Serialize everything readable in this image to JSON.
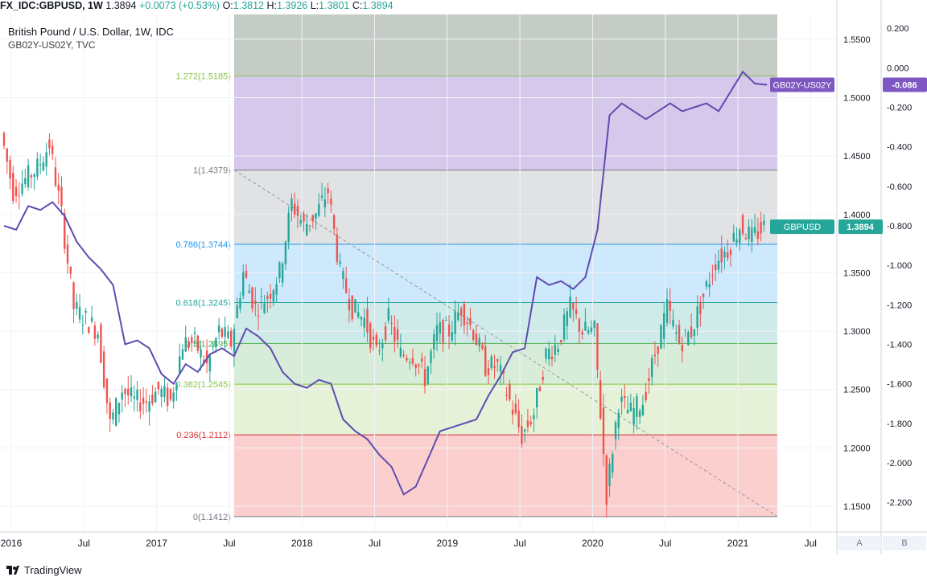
{
  "header": {
    "symbol": "FX_IDC:GBPUSD, 1W",
    "last": "1.3894",
    "change": "+0.0073 (+0.53%)",
    "o_label": "O:",
    "o": "1.3812",
    "h_label": "H:",
    "h": "1.3926",
    "l_label": "L:",
    "l": "1.3801",
    "c_label": "C:",
    "c": "1.3894"
  },
  "legend": {
    "main": "British Pound / U.S. Dollar, 1W, IDC",
    "secondary": "GB02Y-US02Y, TVC"
  },
  "footer": {
    "brand": "TradingView",
    "scale_a": "A",
    "scale_b": "B"
  },
  "colors": {
    "up": "#26a69a",
    "down": "#ef5350",
    "spread_line": "#5e4cb0",
    "badge_spread": "#7e57c2",
    "badge_price": "#26a69a"
  },
  "chart_data": {
    "type": "candlestick",
    "title": "British Pound / U.S. Dollar, 1W, IDC",
    "x_ticks": [
      "2016",
      "Jul",
      "2017",
      "Jul",
      "2018",
      "Jul",
      "2019",
      "Jul",
      "2020",
      "Jul",
      "2021",
      "Jul"
    ],
    "price_axis": {
      "ticks": [
        "1.5500",
        "1.5000",
        "1.4500",
        "1.4000",
        "1.3500",
        "1.3000",
        "1.2500",
        "1.2000",
        "1.1500"
      ],
      "range": [
        1.128,
        1.5712
      ]
    },
    "spread_axis": {
      "ticks": [
        "0.200",
        "0.000",
        "-0.200",
        "-0.400",
        "-0.600",
        "-0.800",
        "-1.000",
        "-1.200",
        "-1.400",
        "-1.600",
        "-1.800",
        "-2.000",
        "-2.200"
      ],
      "range": [
        -2.35,
        0.27
      ]
    },
    "fibonacci": {
      "start": {
        "date": "2017-08",
        "price": 1.4379
      },
      "end": {
        "date": "2021-05",
        "price": 1.1412
      },
      "levels": [
        {
          "label": "1.272(1.5185)",
          "ratio": 1.272,
          "price": 1.5185,
          "color": "#8bc34a"
        },
        {
          "label": "1(1.4379)",
          "ratio": 1,
          "price": 1.4379,
          "color": "#787b86"
        },
        {
          "label": "0.786(1.3744)",
          "ratio": 0.786,
          "price": 1.3744,
          "color": "#2196f3"
        },
        {
          "label": "0.618(1.3245)",
          "ratio": 0.618,
          "price": 1.3245,
          "color": "#26a69a"
        },
        {
          "label": "0.5(1.2895)",
          "ratio": 0.5,
          "price": 1.2895,
          "color": "#4caf50"
        },
        {
          "label": "0.382(1.2545)",
          "ratio": 0.382,
          "price": 1.2545,
          "color": "#8bc34a"
        },
        {
          "label": "0.236(1.2112)",
          "ratio": 0.236,
          "price": 1.2112,
          "color": "#d32f2f"
        },
        {
          "label": "0(1.1412)",
          "ratio": 0,
          "price": 1.1412,
          "color": "#787b86"
        }
      ]
    },
    "price_points": [
      [
        "2016-01",
        1.47
      ],
      [
        "2016-02",
        1.42
      ],
      [
        "2016-03",
        1.43
      ],
      [
        "2016-04",
        1.44
      ],
      [
        "2016-05",
        1.46
      ],
      [
        "2016-06",
        1.4
      ],
      [
        "2016-07",
        1.32
      ],
      [
        "2016-08",
        1.31
      ],
      [
        "2016-09",
        1.3
      ],
      [
        "2016-10",
        1.22
      ],
      [
        "2016-11",
        1.25
      ],
      [
        "2016-12",
        1.24
      ],
      [
        "2017-01",
        1.24
      ],
      [
        "2017-02",
        1.25
      ],
      [
        "2017-03",
        1.24
      ],
      [
        "2017-04",
        1.29
      ],
      [
        "2017-05",
        1.29
      ],
      [
        "2017-06",
        1.27
      ],
      [
        "2017-07",
        1.3
      ],
      [
        "2017-08",
        1.29
      ],
      [
        "2017-09",
        1.35
      ],
      [
        "2017-10",
        1.32
      ],
      [
        "2017-11",
        1.33
      ],
      [
        "2017-12",
        1.35
      ],
      [
        "2018-01",
        1.41
      ],
      [
        "2018-02",
        1.39
      ],
      [
        "2018-03",
        1.4
      ],
      [
        "2018-04",
        1.42
      ],
      [
        "2018-05",
        1.35
      ],
      [
        "2018-06",
        1.32
      ],
      [
        "2018-07",
        1.31
      ],
      [
        "2018-08",
        1.28
      ],
      [
        "2018-09",
        1.31
      ],
      [
        "2018-10",
        1.28
      ],
      [
        "2018-11",
        1.28
      ],
      [
        "2018-12",
        1.26
      ],
      [
        "2019-01",
        1.3
      ],
      [
        "2019-02",
        1.3
      ],
      [
        "2019-03",
        1.32
      ],
      [
        "2019-04",
        1.3
      ],
      [
        "2019-05",
        1.27
      ],
      [
        "2019-06",
        1.27
      ],
      [
        "2019-07",
        1.24
      ],
      [
        "2019-08",
        1.21
      ],
      [
        "2019-09",
        1.23
      ],
      [
        "2019-10",
        1.28
      ],
      [
        "2019-11",
        1.29
      ],
      [
        "2019-12",
        1.32
      ],
      [
        "2020-01",
        1.3
      ],
      [
        "2020-02",
        1.3
      ],
      [
        "2020-03",
        1.16
      ],
      [
        "2020-04",
        1.24
      ],
      [
        "2020-05",
        1.23
      ],
      [
        "2020-06",
        1.24
      ],
      [
        "2020-07",
        1.28
      ],
      [
        "2020-08",
        1.32
      ],
      [
        "2020-09",
        1.29
      ],
      [
        "2020-10",
        1.3
      ],
      [
        "2020-11",
        1.33
      ],
      [
        "2020-12",
        1.36
      ],
      [
        "2021-01",
        1.37
      ],
      [
        "2021-02",
        1.39
      ],
      [
        "2021-03",
        1.38
      ],
      [
        "2021-04",
        1.3894
      ]
    ],
    "spread_points": [
      [
        "2016-01",
        -0.8
      ],
      [
        "2016-02",
        -0.82
      ],
      [
        "2016-03",
        -0.7
      ],
      [
        "2016-04",
        -0.72
      ],
      [
        "2016-05",
        -0.68
      ],
      [
        "2016-06",
        -0.75
      ],
      [
        "2016-07",
        -0.88
      ],
      [
        "2016-08",
        -0.96
      ],
      [
        "2016-09",
        -1.02
      ],
      [
        "2016-10",
        -1.1
      ],
      [
        "2016-11",
        -1.4
      ],
      [
        "2016-12",
        -1.38
      ],
      [
        "2017-01",
        -1.42
      ],
      [
        "2017-02",
        -1.55
      ],
      [
        "2017-03",
        -1.6
      ],
      [
        "2017-04",
        -1.5
      ],
      [
        "2017-05",
        -1.54
      ],
      [
        "2017-06",
        -1.45
      ],
      [
        "2017-07",
        -1.42
      ],
      [
        "2017-08",
        -1.46
      ],
      [
        "2017-09",
        -1.32
      ],
      [
        "2017-10",
        -1.36
      ],
      [
        "2017-11",
        -1.42
      ],
      [
        "2017-12",
        -1.54
      ],
      [
        "2018-01",
        -1.6
      ],
      [
        "2018-02",
        -1.62
      ],
      [
        "2018-03",
        -1.58
      ],
      [
        "2018-04",
        -1.6
      ],
      [
        "2018-05",
        -1.78
      ],
      [
        "2018-06",
        -1.84
      ],
      [
        "2018-07",
        -1.88
      ],
      [
        "2018-08",
        -1.96
      ],
      [
        "2018-09",
        -2.02
      ],
      [
        "2018-10",
        -2.16
      ],
      [
        "2018-11",
        -2.12
      ],
      [
        "2018-12",
        -1.98
      ],
      [
        "2019-01",
        -1.84
      ],
      [
        "2019-02",
        -1.82
      ],
      [
        "2019-03",
        -1.8
      ],
      [
        "2019-04",
        -1.78
      ],
      [
        "2019-05",
        -1.66
      ],
      [
        "2019-06",
        -1.56
      ],
      [
        "2019-07",
        -1.44
      ],
      [
        "2019-08",
        -1.42
      ],
      [
        "2019-09",
        -1.06
      ],
      [
        "2019-10",
        -1.1
      ],
      [
        "2019-11",
        -1.08
      ],
      [
        "2019-12",
        -1.12
      ],
      [
        "2020-01",
        -1.06
      ],
      [
        "2020-02",
        -0.82
      ],
      [
        "2020-03",
        -0.24
      ],
      [
        "2020-04",
        -0.18
      ],
      [
        "2020-05",
        -0.22
      ],
      [
        "2020-06",
        -0.26
      ],
      [
        "2020-07",
        -0.22
      ],
      [
        "2020-08",
        -0.18
      ],
      [
        "2020-09",
        -0.22
      ],
      [
        "2020-10",
        -0.2
      ],
      [
        "2020-11",
        -0.18
      ],
      [
        "2020-12",
        -0.22
      ],
      [
        "2021-01",
        -0.12
      ],
      [
        "2021-02",
        -0.02
      ],
      [
        "2021-03",
        -0.08
      ],
      [
        "2021-04",
        -0.086
      ]
    ],
    "badges": [
      {
        "label": "GB02Y-US02Y",
        "value": "-0.086"
      },
      {
        "label": "GBPUSD",
        "value": "1.3894"
      }
    ]
  }
}
